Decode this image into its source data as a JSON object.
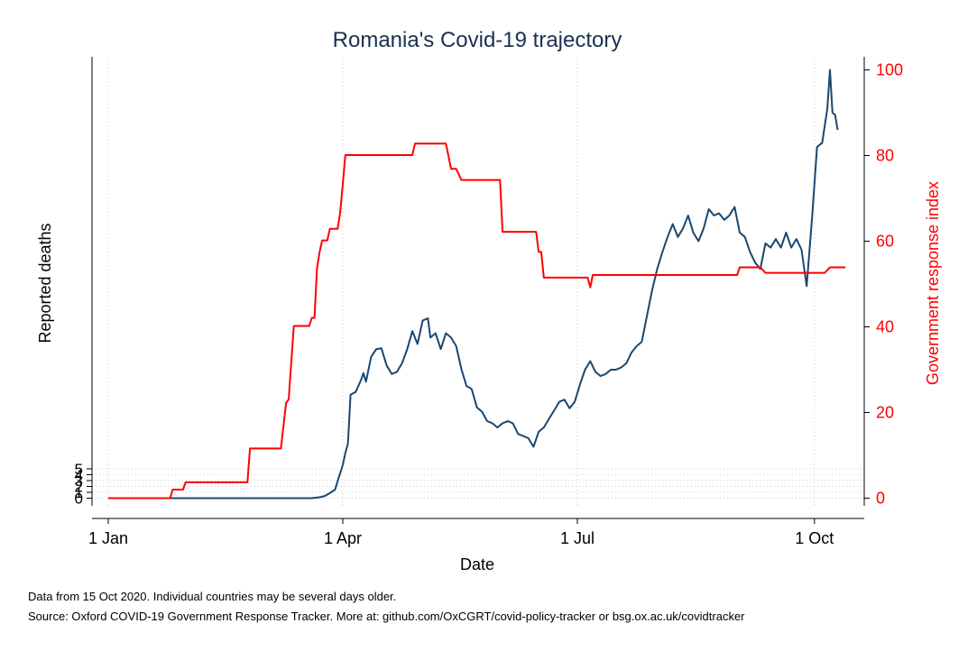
{
  "chart_data": {
    "type": "line",
    "title": "Romania's Covid-19 trajectory",
    "xlabel": "Date",
    "ylabel_left": "Reported deaths",
    "ylabel_right": "Government response index",
    "x_ticks": [
      "1 Jan",
      "1 Apr",
      "1 Jul",
      "1 Oct"
    ],
    "y_left_ticks": [
      "0",
      "1",
      "2",
      "3",
      "4",
      "5"
    ],
    "y_right_ticks": [
      "0",
      "20",
      "40",
      "60",
      "80",
      "100"
    ],
    "y_right_range": [
      0,
      100
    ],
    "grid": true,
    "colors": {
      "deaths": "#1a476f",
      "index": "#ff0000",
      "title": "#1a3050",
      "grid": "#cccccc"
    },
    "series": [
      {
        "axis": "left",
        "color": "#1a476f",
        "points": [
          [
            "2020-01-01",
            0
          ],
          [
            "2020-03-20",
            0
          ],
          [
            "2020-03-23",
            0.2
          ],
          [
            "2020-03-25",
            0.5
          ],
          [
            "2020-03-27",
            1.2
          ],
          [
            "2020-03-29",
            2
          ],
          [
            "2020-03-30",
            4
          ],
          [
            "2020-04-01",
            7.8
          ],
          [
            "2020-04-02",
            10.5
          ],
          [
            "2020-04-03",
            12.8
          ],
          [
            "2020-04-04",
            24.2
          ],
          [
            "2020-04-06",
            24.8
          ],
          [
            "2020-04-08",
            27.5
          ],
          [
            "2020-04-09",
            29.2
          ],
          [
            "2020-04-10",
            27.2
          ],
          [
            "2020-04-12",
            33
          ],
          [
            "2020-04-14",
            34.8
          ],
          [
            "2020-04-16",
            35
          ],
          [
            "2020-04-18",
            31
          ],
          [
            "2020-04-20",
            29
          ],
          [
            "2020-04-22",
            29.5
          ],
          [
            "2020-04-24",
            31.5
          ],
          [
            "2020-04-26",
            34.8
          ],
          [
            "2020-04-28",
            39
          ],
          [
            "2020-04-30",
            36
          ],
          [
            "2020-05-02",
            41.5
          ],
          [
            "2020-05-04",
            42
          ],
          [
            "2020-05-05",
            37.5
          ],
          [
            "2020-05-07",
            38.5
          ],
          [
            "2020-05-09",
            34.8
          ],
          [
            "2020-05-11",
            38.5
          ],
          [
            "2020-05-13",
            37.5
          ],
          [
            "2020-05-15",
            35.5
          ],
          [
            "2020-05-17",
            30.2
          ],
          [
            "2020-05-19",
            26.2
          ],
          [
            "2020-05-21",
            25.5
          ],
          [
            "2020-05-23",
            21.2
          ],
          [
            "2020-05-25",
            20.2
          ],
          [
            "2020-05-27",
            18
          ],
          [
            "2020-05-29",
            17.5
          ],
          [
            "2020-05-31",
            16.5
          ],
          [
            "2020-06-02",
            17.5
          ],
          [
            "2020-06-04",
            18
          ],
          [
            "2020-06-06",
            17.5
          ],
          [
            "2020-06-08",
            15
          ],
          [
            "2020-06-10",
            14.5
          ],
          [
            "2020-06-12",
            14
          ],
          [
            "2020-06-14",
            12
          ],
          [
            "2020-06-16",
            15.5
          ],
          [
            "2020-06-18",
            16.5
          ],
          [
            "2020-06-20",
            18.5
          ],
          [
            "2020-06-22",
            20.5
          ],
          [
            "2020-06-24",
            22.5
          ],
          [
            "2020-06-26",
            23
          ],
          [
            "2020-06-28",
            21
          ],
          [
            "2020-06-30",
            22.5
          ],
          [
            "2020-07-02",
            26.5
          ],
          [
            "2020-07-04",
            30
          ],
          [
            "2020-07-06",
            32
          ],
          [
            "2020-07-08",
            29.5
          ],
          [
            "2020-07-10",
            28.5
          ],
          [
            "2020-07-12",
            29
          ],
          [
            "2020-07-14",
            30
          ],
          [
            "2020-07-16",
            30
          ],
          [
            "2020-07-18",
            30.5
          ],
          [
            "2020-07-20",
            31.5
          ],
          [
            "2020-07-22",
            34
          ],
          [
            "2020-07-24",
            35.5
          ],
          [
            "2020-07-26",
            36.5
          ],
          [
            "2020-07-28",
            42.5
          ],
          [
            "2020-07-30",
            48.5
          ],
          [
            "2020-08-01",
            53.5
          ],
          [
            "2020-08-03",
            57.5
          ],
          [
            "2020-08-05",
            61
          ],
          [
            "2020-08-07",
            64
          ],
          [
            "2020-08-09",
            61
          ],
          [
            "2020-08-11",
            63
          ],
          [
            "2020-08-13",
            66
          ],
          [
            "2020-08-15",
            62
          ],
          [
            "2020-08-17",
            60
          ],
          [
            "2020-08-19",
            63
          ],
          [
            "2020-08-21",
            67.5
          ],
          [
            "2020-08-23",
            66
          ],
          [
            "2020-08-25",
            66.5
          ],
          [
            "2020-08-27",
            65
          ],
          [
            "2020-08-29",
            66
          ],
          [
            "2020-08-31",
            68
          ],
          [
            "2020-09-02",
            62
          ],
          [
            "2020-09-04",
            61
          ],
          [
            "2020-09-06",
            57.5
          ],
          [
            "2020-09-08",
            55
          ],
          [
            "2020-09-10",
            53.5
          ],
          [
            "2020-09-12",
            59.5
          ],
          [
            "2020-09-14",
            58.5
          ],
          [
            "2020-09-16",
            60.5
          ],
          [
            "2020-09-18",
            58.5
          ],
          [
            "2020-09-20",
            62
          ],
          [
            "2020-09-22",
            58.5
          ],
          [
            "2020-09-24",
            60.5
          ],
          [
            "2020-09-26",
            58
          ],
          [
            "2020-09-28",
            49.5
          ],
          [
            "2020-09-30",
            65
          ],
          [
            "2020-10-02",
            82
          ],
          [
            "2020-10-04",
            83
          ],
          [
            "2020-10-06",
            91
          ],
          [
            "2020-10-07",
            100
          ],
          [
            "2020-10-08",
            90
          ],
          [
            "2020-10-09",
            89.5
          ],
          [
            "2020-10-10",
            86
          ]
        ]
      },
      {
        "axis": "right",
        "color": "#ff0000",
        "points": [
          [
            "2020-01-01",
            0
          ],
          [
            "2020-01-25",
            0
          ],
          [
            "2020-01-26",
            2
          ],
          [
            "2020-01-30",
            2
          ],
          [
            "2020-01-31",
            3.7
          ],
          [
            "2020-02-24",
            3.7
          ],
          [
            "2020-02-25",
            11.6
          ],
          [
            "2020-03-08",
            11.6
          ],
          [
            "2020-03-10",
            22.2
          ],
          [
            "2020-03-11",
            23.1
          ],
          [
            "2020-03-13",
            40.2
          ],
          [
            "2020-03-19",
            40.2
          ],
          [
            "2020-03-20",
            42.1
          ],
          [
            "2020-03-21",
            42.1
          ],
          [
            "2020-03-22",
            53.7
          ],
          [
            "2020-03-23",
            57.5
          ],
          [
            "2020-03-24",
            60.2
          ],
          [
            "2020-03-26",
            60.2
          ],
          [
            "2020-03-27",
            62.9
          ],
          [
            "2020-03-30",
            62.9
          ],
          [
            "2020-03-31",
            66.7
          ],
          [
            "2020-04-01",
            73.3
          ],
          [
            "2020-04-02",
            80.1
          ],
          [
            "2020-04-28",
            80.1
          ],
          [
            "2020-04-29",
            82.8
          ],
          [
            "2020-05-11",
            82.8
          ],
          [
            "2020-05-13",
            76.9
          ],
          [
            "2020-05-15",
            76.9
          ],
          [
            "2020-05-17",
            74.3
          ],
          [
            "2020-06-01",
            74.3
          ],
          [
            "2020-06-02",
            62.2
          ],
          [
            "2020-06-15",
            62.2
          ],
          [
            "2020-06-16",
            57.5
          ],
          [
            "2020-06-17",
            57.5
          ],
          [
            "2020-06-18",
            51.5
          ],
          [
            "2020-07-05",
            51.5
          ],
          [
            "2020-07-06",
            49.2
          ],
          [
            "2020-07-07",
            52.1
          ],
          [
            "2020-09-01",
            52.1
          ],
          [
            "2020-09-02",
            53.9
          ],
          [
            "2020-09-10",
            53.9
          ],
          [
            "2020-09-12",
            52.6
          ],
          [
            "2020-10-05",
            52.6
          ],
          [
            "2020-10-07",
            53.9
          ],
          [
            "2020-10-13",
            53.9
          ]
        ]
      }
    ]
  },
  "notes": {
    "line1": "Data from 15 Oct 2020. Individual countries may be several days older.",
    "line2": "Source: Oxford COVID-19 Government Response Tracker. More at: github.com/OxCGRT/covid-policy-tracker or bsg.ox.ac.uk/covidtracker"
  }
}
